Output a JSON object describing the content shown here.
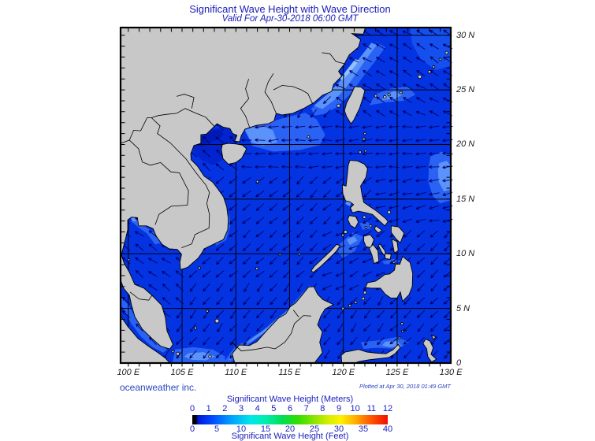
{
  "header": {
    "title": "Significant Wave Height with Wave Direction",
    "subtitle": "Valid For Apr-30-2018 06:00 GMT"
  },
  "axes": {
    "lat_labels": [
      {
        "text": "30 N",
        "lat": 30
      },
      {
        "text": "25 N",
        "lat": 25
      },
      {
        "text": "20 N",
        "lat": 20
      },
      {
        "text": "15 N",
        "lat": 15
      },
      {
        "text": "10 N",
        "lat": 10
      },
      {
        "text": "5 N",
        "lat": 5
      },
      {
        "text": "0",
        "lat": 0
      }
    ],
    "lon_labels": [
      {
        "text": "100 E",
        "lon": 100
      },
      {
        "text": "105 E",
        "lon": 105
      },
      {
        "text": "110 E",
        "lon": 110
      },
      {
        "text": "115 E",
        "lon": 115
      },
      {
        "text": "120 E",
        "lon": 120
      },
      {
        "text": "125 E",
        "lon": 125
      },
      {
        "text": "130 E",
        "lon": 130
      }
    ]
  },
  "footer": {
    "credit": "oceanweather inc.",
    "plotted": "Plotted at Apr 30, 2018 01:49 GMT"
  },
  "colorbar": {
    "meters_title": "Significant Wave Height (Meters)",
    "feet_title": "Significant Wave Height (Feet)",
    "meters_ticks": [
      "0",
      "1",
      "2",
      "3",
      "4",
      "5",
      "6",
      "7",
      "8",
      "9",
      "10",
      "11",
      "12"
    ],
    "feet_ticks": [
      "0",
      "5",
      "10",
      "15",
      "20",
      "25",
      "30",
      "35",
      "40"
    ],
    "gradient_stops": [
      [
        0,
        "#000000"
      ],
      [
        0.018,
        "#000000"
      ],
      [
        0.03,
        "#0018d8"
      ],
      [
        0.1,
        "#0048ff"
      ],
      [
        0.2,
        "#00a0ff"
      ],
      [
        0.3,
        "#00e8e8"
      ],
      [
        0.38,
        "#00eeaa"
      ],
      [
        0.46,
        "#00dd55"
      ],
      [
        0.54,
        "#33dd00"
      ],
      [
        0.62,
        "#88e400"
      ],
      [
        0.7,
        "#d8ee00"
      ],
      [
        0.76,
        "#fff000"
      ],
      [
        0.84,
        "#ffa800"
      ],
      [
        0.92,
        "#ff5000"
      ],
      [
        1,
        "#ee1000"
      ]
    ]
  },
  "colors": {
    "title_text": "#1c20b8",
    "axis_text": "#1b1b22",
    "credit_text": "#2a46c0",
    "colorbar_text": "#1c20c0",
    "land": "#c8c8c8",
    "coastline": "#000000",
    "water_base": "#0433e2",
    "water_mid": "#1550ef",
    "water_light1": "#2a63f4",
    "water_light2": "#5b93fa",
    "water_light3": "#93c0fe",
    "water_dark1": "#0124cf",
    "water_dark2": "#0019b5",
    "arrow": "#000066",
    "grid": "#000000"
  }
}
